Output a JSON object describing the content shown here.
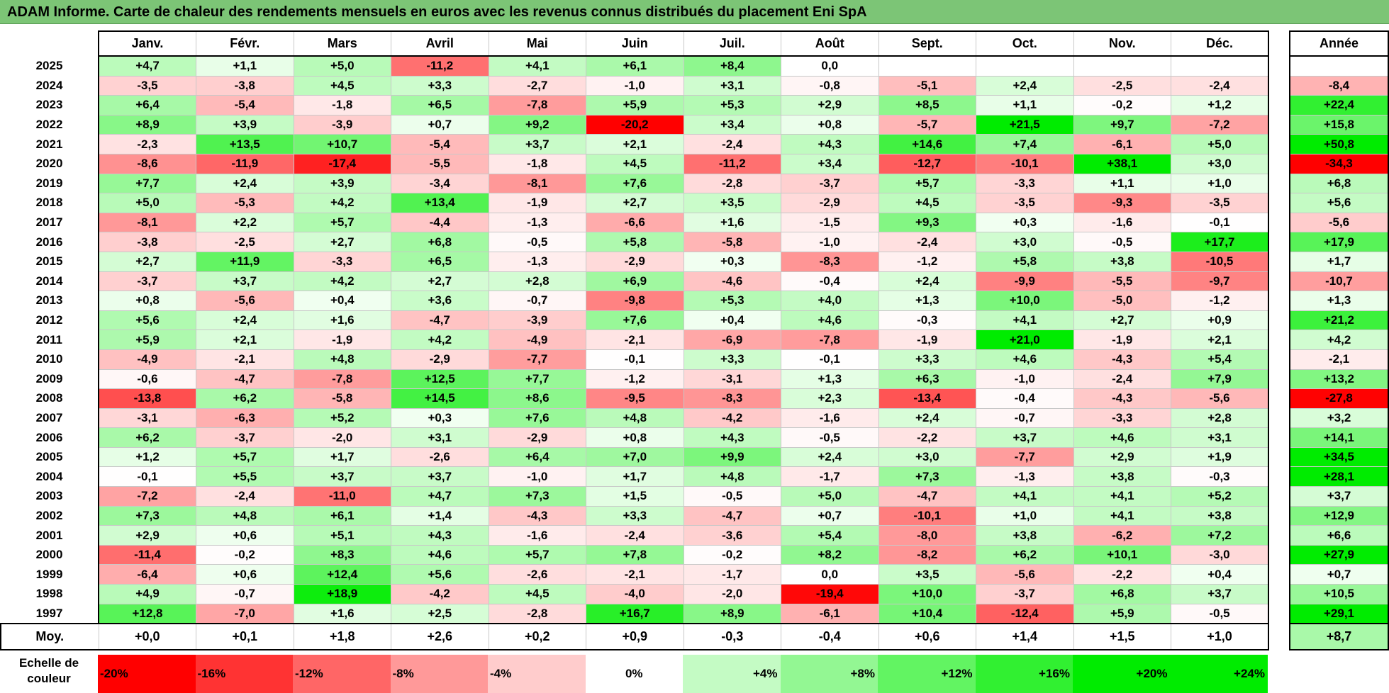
{
  "title": "ADAM Informe. Carte de chaleur des rendements mensuels en euros avec les revenus connus distribués du placement Eni SpA",
  "chart_data": {
    "type": "heatmap",
    "columns": [
      "Janv.",
      "Févr.",
      "Mars",
      "Avril",
      "Mai",
      "Juin",
      "Juil.",
      "Août",
      "Sept.",
      "Oct.",
      "Nov.",
      "Déc."
    ],
    "annual_header": "Année",
    "rows": [
      {
        "year": "2025",
        "values": [
          "+4,7",
          "+1,1",
          "+5,0",
          "-11,2",
          "+4,1",
          "+6,1",
          "+8,4",
          "0,0",
          "",
          "",
          "",
          ""
        ],
        "annual": ""
      },
      {
        "year": "2024",
        "values": [
          "-3,5",
          "-3,8",
          "+4,5",
          "+3,3",
          "-2,7",
          "-1,0",
          "+3,1",
          "-0,8",
          "-5,1",
          "+2,4",
          "-2,5",
          "-2,4"
        ],
        "annual": "-8,4"
      },
      {
        "year": "2023",
        "values": [
          "+6,4",
          "-5,4",
          "-1,8",
          "+6,5",
          "-7,8",
          "+5,9",
          "+5,3",
          "+2,9",
          "+8,5",
          "+1,1",
          "-0,2",
          "+1,2"
        ],
        "annual": "+22,4"
      },
      {
        "year": "2022",
        "values": [
          "+8,9",
          "+3,9",
          "-3,9",
          "+0,7",
          "+9,2",
          "-20,2",
          "+3,4",
          "+0,8",
          "-5,7",
          "+21,5",
          "+9,7",
          "-7,2"
        ],
        "annual": "+15,8"
      },
      {
        "year": "2021",
        "values": [
          "-2,3",
          "+13,5",
          "+10,7",
          "-5,4",
          "+3,7",
          "+2,1",
          "-2,4",
          "+4,3",
          "+14,6",
          "+7,4",
          "-6,1",
          "+5,0"
        ],
        "annual": "+50,8"
      },
      {
        "year": "2020",
        "values": [
          "-8,6",
          "-11,9",
          "-17,4",
          "-5,5",
          "-1,8",
          "+4,5",
          "-11,2",
          "+3,4",
          "-12,7",
          "-10,1",
          "+38,1",
          "+3,0"
        ],
        "annual": "-34,3"
      },
      {
        "year": "2019",
        "values": [
          "+7,7",
          "+2,4",
          "+3,9",
          "-3,4",
          "-8,1",
          "+7,6",
          "-2,8",
          "-3,7",
          "+5,7",
          "-3,3",
          "+1,1",
          "+1,0"
        ],
        "annual": "+6,8"
      },
      {
        "year": "2018",
        "values": [
          "+5,0",
          "-5,3",
          "+4,2",
          "+13,4",
          "-1,9",
          "+2,7",
          "+3,5",
          "-2,9",
          "+4,5",
          "-3,5",
          "-9,3",
          "-3,5"
        ],
        "annual": "+5,6"
      },
      {
        "year": "2017",
        "values": [
          "-8,1",
          "+2,2",
          "+5,7",
          "-4,4",
          "-1,3",
          "-6,6",
          "+1,6",
          "-1,5",
          "+9,3",
          "+0,3",
          "-1,6",
          "-0,1"
        ],
        "annual": "-5,6"
      },
      {
        "year": "2016",
        "values": [
          "-3,8",
          "-2,5",
          "+2,7",
          "+6,8",
          "-0,5",
          "+5,8",
          "-5,8",
          "-1,0",
          "-2,4",
          "+3,0",
          "-0,5",
          "+17,7"
        ],
        "annual": "+17,9"
      },
      {
        "year": "2015",
        "values": [
          "+2,7",
          "+11,9",
          "-3,3",
          "+6,5",
          "-1,3",
          "-2,9",
          "+0,3",
          "-8,3",
          "-1,2",
          "+5,8",
          "+3,8",
          "-10,5"
        ],
        "annual": "+1,7"
      },
      {
        "year": "2014",
        "values": [
          "-3,7",
          "+3,7",
          "+4,2",
          "+2,7",
          "+2,8",
          "+6,9",
          "-4,6",
          "-0,4",
          "+2,4",
          "-9,9",
          "-5,5",
          "-9,7"
        ],
        "annual": "-10,7"
      },
      {
        "year": "2013",
        "values": [
          "+0,8",
          "-5,6",
          "+0,4",
          "+3,6",
          "-0,7",
          "-9,8",
          "+5,3",
          "+4,0",
          "+1,3",
          "+10,0",
          "-5,0",
          "-1,2"
        ],
        "annual": "+1,3"
      },
      {
        "year": "2012",
        "values": [
          "+5,6",
          "+2,4",
          "+1,6",
          "-4,7",
          "-3,9",
          "+7,6",
          "+0,4",
          "+4,6",
          "-0,3",
          "+4,1",
          "+2,7",
          "+0,9"
        ],
        "annual": "+21,2"
      },
      {
        "year": "2011",
        "values": [
          "+5,9",
          "+2,1",
          "-1,9",
          "+4,2",
          "-4,9",
          "-2,1",
          "-6,9",
          "-7,8",
          "-1,9",
          "+21,0",
          "-1,9",
          "+2,1"
        ],
        "annual": "+4,2"
      },
      {
        "year": "2010",
        "values": [
          "-4,9",
          "-2,1",
          "+4,8",
          "-2,9",
          "-7,7",
          "-0,1",
          "+3,3",
          "-0,1",
          "+3,3",
          "+4,6",
          "-4,3",
          "+5,4"
        ],
        "annual": "-2,1"
      },
      {
        "year": "2009",
        "values": [
          "-0,6",
          "-4,7",
          "-7,8",
          "+12,5",
          "+7,7",
          "-1,2",
          "-3,1",
          "+1,3",
          "+6,3",
          "-1,0",
          "-2,4",
          "+7,9"
        ],
        "annual": "+13,2"
      },
      {
        "year": "2008",
        "values": [
          "-13,8",
          "+6,2",
          "-5,8",
          "+14,5",
          "+8,6",
          "-9,5",
          "-8,3",
          "+2,3",
          "-13,4",
          "-0,4",
          "-4,3",
          "-5,6"
        ],
        "annual": "-27,8"
      },
      {
        "year": "2007",
        "values": [
          "-3,1",
          "-6,3",
          "+5,2",
          "+0,3",
          "+7,6",
          "+4,8",
          "-4,2",
          "-1,6",
          "+2,4",
          "-0,7",
          "-3,3",
          "+2,8"
        ],
        "annual": "+3,2"
      },
      {
        "year": "2006",
        "values": [
          "+6,2",
          "-3,7",
          "-2,0",
          "+3,1",
          "-2,9",
          "+0,8",
          "+4,3",
          "-0,5",
          "-2,2",
          "+3,7",
          "+4,6",
          "+3,1"
        ],
        "annual": "+14,1"
      },
      {
        "year": "2005",
        "values": [
          "+1,2",
          "+5,7",
          "+1,7",
          "-2,6",
          "+6,4",
          "+7,0",
          "+9,9",
          "+2,4",
          "+3,0",
          "-7,7",
          "+2,9",
          "+1,9"
        ],
        "annual": "+34,5"
      },
      {
        "year": "2004",
        "values": [
          "-0,1",
          "+5,5",
          "+3,7",
          "+3,7",
          "-1,0",
          "+1,7",
          "+4,8",
          "-1,7",
          "+7,3",
          "-1,3",
          "+3,8",
          "-0,3"
        ],
        "annual": "+28,1"
      },
      {
        "year": "2003",
        "values": [
          "-7,2",
          "-2,4",
          "-11,0",
          "+4,7",
          "+7,3",
          "+1,5",
          "-0,5",
          "+5,0",
          "-4,7",
          "+4,1",
          "+4,1",
          "+5,2"
        ],
        "annual": "+3,7"
      },
      {
        "year": "2002",
        "values": [
          "+7,3",
          "+4,8",
          "+6,1",
          "+1,4",
          "-4,3",
          "+3,3",
          "-4,7",
          "+0,7",
          "-10,1",
          "+1,0",
          "+4,1",
          "+3,8"
        ],
        "annual": "+12,9"
      },
      {
        "year": "2001",
        "values": [
          "+2,9",
          "+0,6",
          "+5,1",
          "+4,3",
          "-1,6",
          "-2,4",
          "-3,6",
          "+5,4",
          "-8,0",
          "+3,8",
          "-6,2",
          "+7,2"
        ],
        "annual": "+6,6"
      },
      {
        "year": "2000",
        "values": [
          "-11,4",
          "-0,2",
          "+8,3",
          "+4,6",
          "+5,7",
          "+7,8",
          "-0,2",
          "+8,2",
          "-8,2",
          "+6,2",
          "+10,1",
          "-3,0"
        ],
        "annual": "+27,9"
      },
      {
        "year": "1999",
        "values": [
          "-6,4",
          "+0,6",
          "+12,4",
          "+5,6",
          "-2,6",
          "-2,1",
          "-1,7",
          "0,0",
          "+3,5",
          "-5,6",
          "-2,2",
          "+0,4"
        ],
        "annual": "+0,7"
      },
      {
        "year": "1998",
        "values": [
          "+4,9",
          "-0,7",
          "+18,9",
          "-4,2",
          "+4,5",
          "-4,0",
          "-2,0",
          "-19,4",
          "+10,0",
          "-3,7",
          "+6,8",
          "+3,7"
        ],
        "annual": "+10,5"
      },
      {
        "year": "1997",
        "values": [
          "+12,8",
          "-7,0",
          "+1,6",
          "+2,5",
          "-2,8",
          "+16,7",
          "+8,9",
          "-6,1",
          "+10,4",
          "-12,4",
          "+5,9",
          "-0,5"
        ],
        "annual": "+29,1"
      }
    ],
    "average": {
      "label": "Moy.",
      "values": [
        "+0,0",
        "+0,1",
        "+1,8",
        "+2,6",
        "+0,2",
        "+0,9",
        "-0,3",
        "-0,4",
        "+0,6",
        "+1,4",
        "+1,5",
        "+1,0"
      ],
      "annual": "+8,7"
    },
    "color_scale": {
      "label_line1": "Echelle de",
      "label_line2": "couleur",
      "stops": [
        {
          "label": "-20%",
          "value": -20
        },
        {
          "label": "-16%",
          "value": -16
        },
        {
          "label": "-12%",
          "value": -12
        },
        {
          "label": "-8%",
          "value": -8
        },
        {
          "label": "-4%",
          "value": -4
        },
        {
          "label": "0%",
          "value": 0
        },
        {
          "label": "+4%",
          "value": 4
        },
        {
          "label": "+8%",
          "value": 8
        },
        {
          "label": "+12%",
          "value": 12
        },
        {
          "label": "+16%",
          "value": 16
        },
        {
          "label": "+20%",
          "value": 20
        },
        {
          "label": "+24%",
          "value": 24
        }
      ],
      "negative_color": "#ff0000",
      "neutral_color": "#ffffff",
      "positive_color": "#00ee00"
    }
  }
}
